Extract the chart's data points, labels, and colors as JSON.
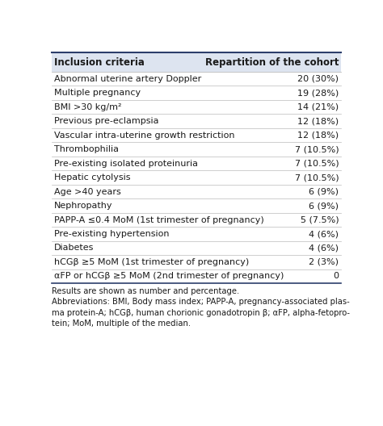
{
  "header_col1": "Inclusion criteria",
  "header_col2": "Repartition of the cohort",
  "rows": [
    [
      "Abnormal uterine artery Doppler",
      "20 (30%)"
    ],
    [
      "Multiple pregnancy",
      "19 (28%)"
    ],
    [
      "BMI >30 kg/m²",
      "14 (21%)"
    ],
    [
      "Previous pre-eclampsia",
      "12 (18%)"
    ],
    [
      "Vascular intra-uterine growth restriction",
      "12 (18%)"
    ],
    [
      "Thrombophilia",
      "7 (10.5%)"
    ],
    [
      "Pre-existing isolated proteinuria",
      "7 (10.5%)"
    ],
    [
      "Hepatic cytolysis",
      "7 (10.5%)"
    ],
    [
      "Age >40 years",
      "6 (9%)"
    ],
    [
      "Nephropathy",
      "6 (9%)"
    ],
    [
      "PAPP-A ≤0.4 MoM (1st trimester of pregnancy)",
      "5 (7.5%)"
    ],
    [
      "Pre-existing hypertension",
      "4 (6%)"
    ],
    [
      "Diabetes",
      "4 (6%)"
    ],
    [
      "hCGβ ≥5 MoM (1st trimester of pregnancy)",
      "2 (3%)"
    ],
    [
      "αFP or hCGβ ≥5 MoM (2nd trimester of pregnancy)",
      "0"
    ]
  ],
  "footnote_lines": [
    "Results are shown as number and percentage.",
    "Abbreviations: BMI, Body mass index; PAPP-A, pregnancy-associated plas-",
    "ma protein-A; hCGβ, human chorionic gonadotropin β; αFP, alpha-fetopro-",
    "tein; MoM, multiple of the median."
  ],
  "bg_color": "#ffffff",
  "header_bg": "#dde4f0",
  "header_text_color": "#1a1a1a",
  "row_text_color": "#1a1a1a",
  "border_color_top": "#2c3e6b",
  "border_color_bottom": "#2c3e6b",
  "grid_color": "#bbbbbb",
  "font_size": 8.0,
  "header_font_size": 8.5,
  "footnote_font_size": 7.2
}
